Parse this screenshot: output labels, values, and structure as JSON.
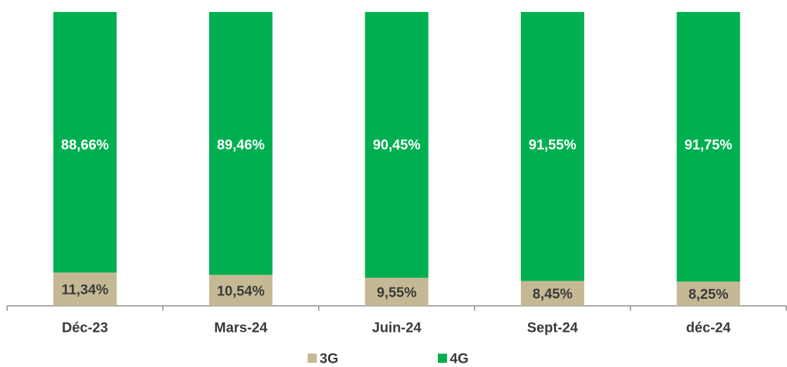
{
  "chart_data": {
    "type": "stacked_bar",
    "categories": [
      "Déc-23",
      "Mars-24",
      "Juin-24",
      "Sept-24",
      "déc-24"
    ],
    "series": [
      {
        "name": "3G",
        "color": "#c4b994",
        "values": [
          11.34,
          10.54,
          9.55,
          8.45,
          8.25
        ],
        "value_labels": [
          "11,34%",
          "10,54%",
          "9,55%",
          "8,45%",
          "8,25%"
        ]
      },
      {
        "name": "4G",
        "color": "#00b050",
        "values": [
          88.66,
          89.46,
          90.45,
          91.55,
          91.75
        ],
        "value_labels": [
          "88,66%",
          "89,46%",
          "90,45%",
          "91,55%",
          "91,75%"
        ]
      }
    ],
    "legend": "bottom"
  }
}
